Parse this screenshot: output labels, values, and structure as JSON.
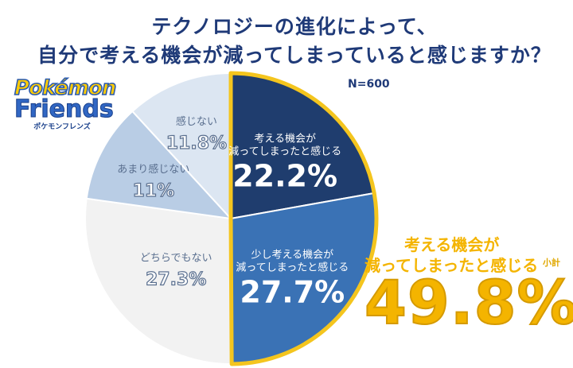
{
  "title": {
    "line1": "テクノロジーの進化によって、",
    "line2": "自分で考える機会が減ってしまっていると感じますか？"
  },
  "logo": {
    "pokemon": "Pokémon",
    "friends": "Friends",
    "kana": "ポケモンフレンズ"
  },
  "sample": "N=600",
  "subtotal": {
    "label_line1": "考える機会が",
    "label_line2": "減ってしまったと感じる",
    "small": "小計",
    "value": "49.8%"
  },
  "chart_data": {
    "type": "pie",
    "n_label": "N=600",
    "slices": [
      {
        "label": [
          "考える機会が",
          "減ってしまったと感じる"
        ],
        "value": 22.2,
        "display": "22.2%",
        "color": "#1f3d6e"
      },
      {
        "label": [
          "少し考える機会が",
          "減ってしまったと感じる"
        ],
        "value": 27.7,
        "display": "27.7%",
        "color": "#3a72b5"
      },
      {
        "label": [
          "どちらでもない"
        ],
        "value": 27.3,
        "display": "27.3%",
        "color": "#f2f2f2"
      },
      {
        "label": [
          "あまり感じない"
        ],
        "value": 11.0,
        "display": "11%",
        "color": "#b9cde5"
      },
      {
        "label": [
          "感じない"
        ],
        "value": 11.8,
        "display": "11.8%",
        "color": "#dce6f2"
      }
    ],
    "highlight": {
      "slices": [
        0,
        1
      ],
      "value": 49.8,
      "color": "#f4c51e"
    }
  }
}
